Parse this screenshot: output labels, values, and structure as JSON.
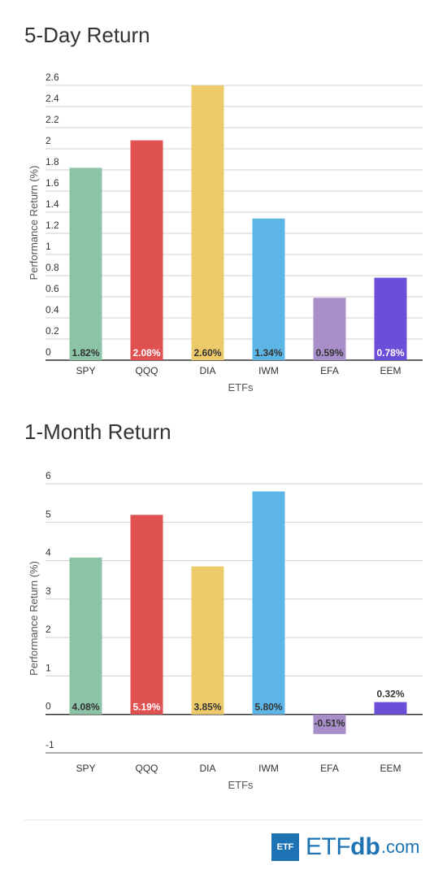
{
  "chart_data": [
    {
      "type": "bar",
      "title": "5-Day Return",
      "xlabel": "ETFs",
      "ylabel": "Performance Return (%)",
      "ylim": [
        0,
        2.6
      ],
      "yticks": [
        "0",
        "0.2",
        "0.4",
        "0.6",
        "0.8",
        "1",
        "1.2",
        "1.4",
        "1.6",
        "1.8",
        "2",
        "2.2",
        "2.4",
        "2.6"
      ],
      "categories": [
        "SPY",
        "QQQ",
        "DIA",
        "IWM",
        "EFA",
        "EEM"
      ],
      "values": [
        1.82,
        2.08,
        2.6,
        1.34,
        0.59,
        0.78
      ],
      "labels": [
        "1.82%",
        "2.08%",
        "2.60%",
        "1.34%",
        "0.59%",
        "0.78%"
      ],
      "colors": [
        "#8dc3a7",
        "#e05252",
        "#eecb6a",
        "#5db5e6",
        "#a98fca",
        "#6c4fd8"
      ],
      "label_colors": [
        "#333333",
        "#ffffff",
        "#333333",
        "#333333",
        "#333333",
        "#ffffff"
      ],
      "grid": true
    },
    {
      "type": "bar",
      "title": "1-Month Return",
      "xlabel": "ETFs",
      "ylabel": "Performance Return (%)",
      "ylim": [
        -1,
        6
      ],
      "yticks": [
        "-1",
        "0",
        "1",
        "2",
        "3",
        "4",
        "5",
        "6"
      ],
      "categories": [
        "SPY",
        "QQQ",
        "DIA",
        "IWM",
        "EFA",
        "EEM"
      ],
      "values": [
        4.08,
        5.19,
        3.85,
        5.8,
        -0.51,
        0.32
      ],
      "labels": [
        "4.08%",
        "5.19%",
        "3.85%",
        "5.80%",
        "-0.51%",
        "0.32%"
      ],
      "colors": [
        "#8dc3a7",
        "#e05252",
        "#eecb6a",
        "#5db5e6",
        "#a98fca",
        "#6c4fd8"
      ],
      "label_colors": [
        "#333333",
        "#ffffff",
        "#333333",
        "#333333",
        "#333333",
        "#333333"
      ],
      "grid": true
    }
  ],
  "footer": {
    "logo_box": "ETF",
    "logo_etf": "ETF",
    "logo_db": "db",
    "logo_com": ".com"
  }
}
